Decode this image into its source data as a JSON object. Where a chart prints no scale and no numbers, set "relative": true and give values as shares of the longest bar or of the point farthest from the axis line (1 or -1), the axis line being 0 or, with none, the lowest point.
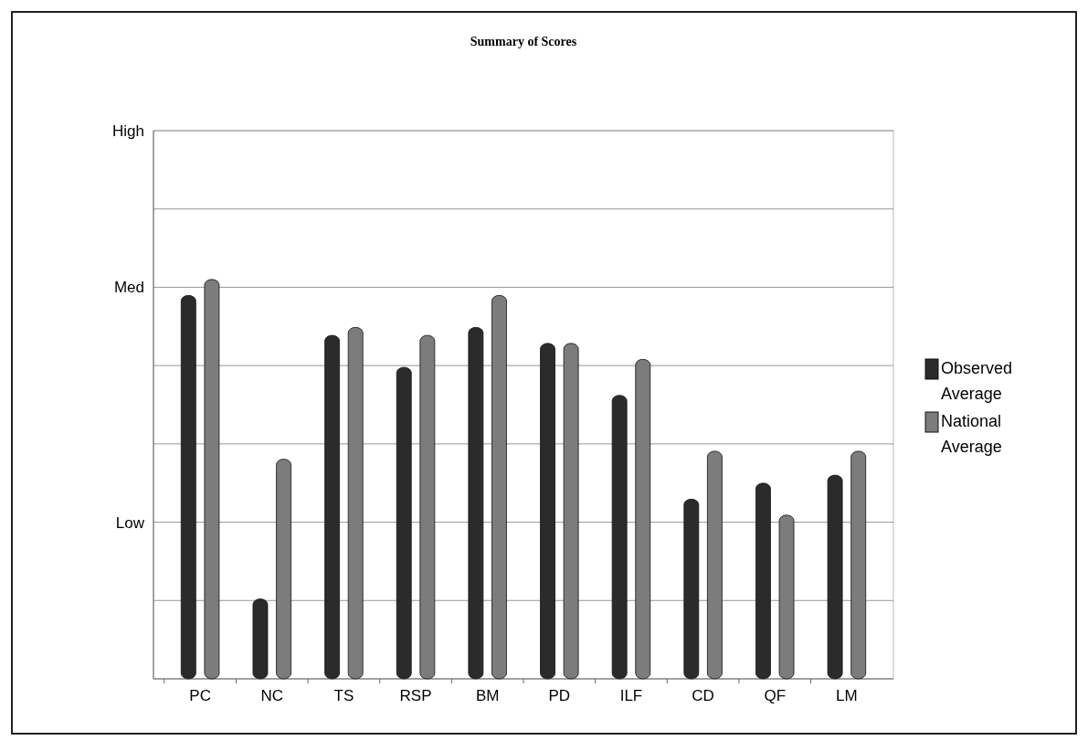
{
  "chart_data": {
    "type": "bar",
    "title": "Summary of Scores",
    "categories": [
      "PC",
      "NC",
      "TS",
      "RSP",
      "BM",
      "PD",
      "ILF",
      "CD",
      "QF",
      "LM"
    ],
    "series": [
      {
        "name": "Observed Average",
        "color": "#2b2b2b",
        "values": [
          0.96,
          0.2,
          0.86,
          0.78,
          0.88,
          0.84,
          0.71,
          0.45,
          0.49,
          0.51
        ]
      },
      {
        "name": "National Average",
        "color": "#7c7c7c",
        "values": [
          1,
          0.55,
          0.88,
          0.86,
          0.96,
          0.84,
          0.8,
          0.57,
          0.41,
          0.57
        ]
      }
    ],
    "relative": true,
    "annotations": [
      "High",
      "Med",
      "Low"
    ],
    "grid": "y",
    "legend": "right"
  }
}
